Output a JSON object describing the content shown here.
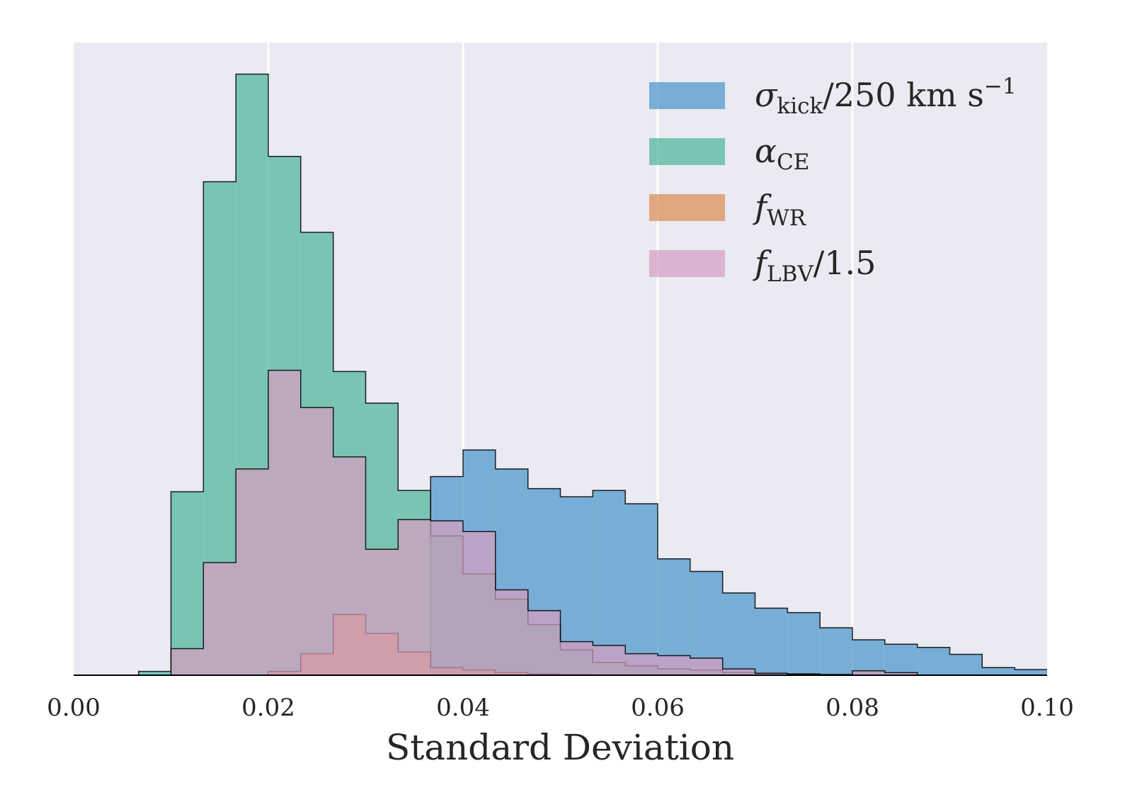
{
  "chart_data": {
    "type": "histogram",
    "xlabel": "Standard Deviation",
    "ylabel": "",
    "xlim": [
      0.0,
      0.1
    ],
    "ylim": [
      0,
      100
    ],
    "y_ticks_shown": false,
    "xticks": [
      "0.00",
      "0.02",
      "0.04",
      "0.06",
      "0.08",
      "0.10"
    ],
    "grid": "vertical",
    "legend_position": "top-right",
    "bins": [
      0.0,
      0.00333,
      0.00667,
      0.01,
      0.01333,
      0.01667,
      0.02,
      0.02333,
      0.02667,
      0.03,
      0.03333,
      0.03667,
      0.04,
      0.04333,
      0.04667,
      0.05,
      0.05333,
      0.05667,
      0.06,
      0.06333,
      0.06667,
      0.07,
      0.07333,
      0.07667,
      0.08,
      0.08333,
      0.08667,
      0.09,
      0.09333,
      0.09667,
      0.1
    ],
    "series": [
      {
        "name": "σ_kick/250 km s^-1",
        "legend_main": "σ",
        "legend_sub": "kick",
        "legend_rest": "/250 km s",
        "legend_sup": "−1",
        "color": "#4c96c9",
        "values": [
          0,
          0,
          0,
          0,
          0,
          0,
          0,
          0,
          0,
          0,
          0,
          31.4,
          35.6,
          32.6,
          29.5,
          28.2,
          29.2,
          27.1,
          18.4,
          16.4,
          13.0,
          10.6,
          9.9,
          7.5,
          5.6,
          4.9,
          4.4,
          3.3,
          1.2,
          0.9
        ]
      },
      {
        "name": "α_CE",
        "legend_main": "α",
        "legend_sub": "CE",
        "legend_rest": "",
        "legend_sup": "",
        "color": "#4fb69d",
        "values": [
          0,
          0,
          0.6,
          29.0,
          78.0,
          95.0,
          82.0,
          70.0,
          48.0,
          43.0,
          29.2,
          22.0,
          16.0,
          12.0,
          8.0,
          4.0,
          2.0,
          1.5,
          1.0,
          0.8,
          0.4,
          0.3,
          0.2,
          0.1,
          0,
          0,
          0,
          0,
          0,
          0
        ]
      },
      {
        "name": "f_WR",
        "legend_main": "f",
        "legend_sub": "WR",
        "legend_rest": "",
        "legend_sup": "",
        "color": "#dc8c53",
        "values": [
          0,
          0,
          0,
          0,
          0,
          0,
          0.6,
          3.4,
          9.6,
          6.6,
          3.7,
          1.2,
          0.8,
          0.4,
          0.2,
          0.1,
          0,
          0,
          0,
          0,
          0,
          0,
          0,
          0,
          0,
          0,
          0,
          0,
          0,
          0
        ]
      },
      {
        "name": "f_LBV/1.5",
        "legend_main": "f",
        "legend_sub": "LBV",
        "legend_rest": "/1.5",
        "legend_sup": "",
        "color": "#d59ec2",
        "values": [
          0,
          0,
          0,
          4.2,
          17.8,
          32.6,
          48.2,
          42.3,
          34.5,
          19.9,
          24.6,
          24.4,
          22.7,
          13.5,
          10.2,
          5.3,
          4.7,
          3.4,
          3.1,
          2.7,
          1.0,
          0.3,
          0.2,
          0.1,
          0.7,
          0.4,
          0,
          0,
          0,
          0
        ]
      }
    ]
  }
}
